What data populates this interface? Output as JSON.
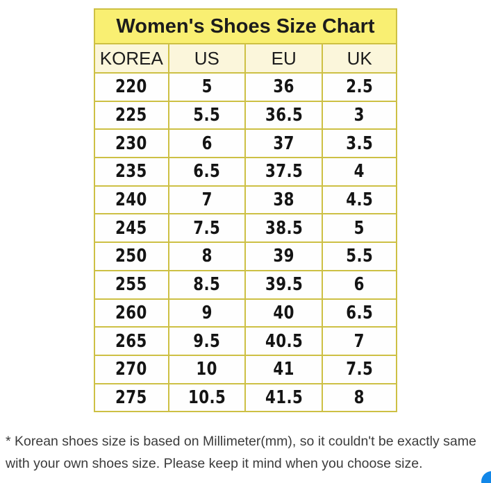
{
  "chart_data": {
    "type": "table",
    "title": "Women's Shoes Size Chart",
    "columns": [
      "KOREA",
      "US",
      "EU",
      "UK"
    ],
    "rows": [
      [
        "220",
        "5",
        "36",
        "2.5"
      ],
      [
        "225",
        "5.5",
        "36.5",
        "3"
      ],
      [
        "230",
        "6",
        "37",
        "3.5"
      ],
      [
        "235",
        "6.5",
        "37.5",
        "4"
      ],
      [
        "240",
        "7",
        "38",
        "4.5"
      ],
      [
        "245",
        "7.5",
        "38.5",
        "5"
      ],
      [
        "250",
        "8",
        "39",
        "5.5"
      ],
      [
        "255",
        "8.5",
        "39.5",
        "6"
      ],
      [
        "260",
        "9",
        "40",
        "6.5"
      ],
      [
        "265",
        "9.5",
        "40.5",
        "7"
      ],
      [
        "270",
        "10",
        "41",
        "7.5"
      ],
      [
        "275",
        "10.5",
        "41.5",
        "8"
      ]
    ],
    "layout": {
      "grid": "on",
      "title_position": "top-merged-row"
    }
  },
  "footnote": {
    "line1": "* Korean shoes size is based on Millimeter(mm), so it couldn't be exactly same",
    "line2": "with your own shoes size. Please keep it mind when you choose size."
  },
  "fab": {
    "name": "floating-action-button"
  },
  "colors": {
    "title_bg": "#f9ef72",
    "header_bg": "#fbf6db",
    "body_bg": "#fefefe",
    "grid_border": "#cdc044",
    "outer_border": "#b9ac3a",
    "text": "#1c1c1c",
    "footnote_text": "#3b3b3b",
    "fab_blue": "#1287e8",
    "page_bg": "#ffffff"
  }
}
